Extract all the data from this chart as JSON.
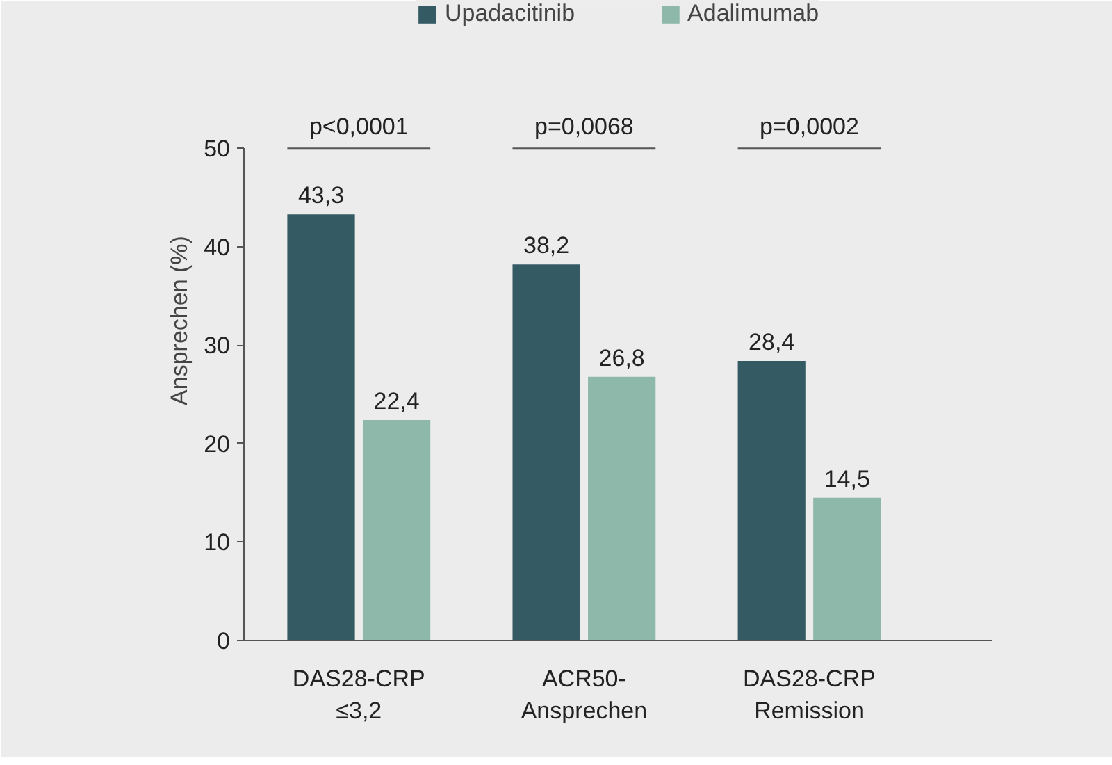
{
  "chart_data": {
    "type": "bar",
    "ylabel": "Ansprechen (%)",
    "categories": [
      "DAS28-CRP\n≤3,2",
      "ACR50-\nAnsprechen",
      "DAS28-CRP\nRemission"
    ],
    "series": [
      {
        "name": "Upadacitinib",
        "color": "#345a64",
        "values": [
          43.3,
          38.2,
          28.4
        ],
        "value_labels": [
          "43,3",
          "38,2",
          "28,4"
        ]
      },
      {
        "name": "Adalimumab",
        "color": "#8db8aa",
        "values": [
          22.4,
          26.8,
          14.5
        ],
        "value_labels": [
          "22,4",
          "26,8",
          "14,5"
        ]
      }
    ],
    "ylim": [
      0,
      50
    ],
    "yticks": [
      0,
      10,
      20,
      30,
      40,
      50
    ],
    "grid": false,
    "legend": "top",
    "annotations": [
      "p<0,0001",
      "p=0,0068",
      "p=0,0002"
    ]
  }
}
